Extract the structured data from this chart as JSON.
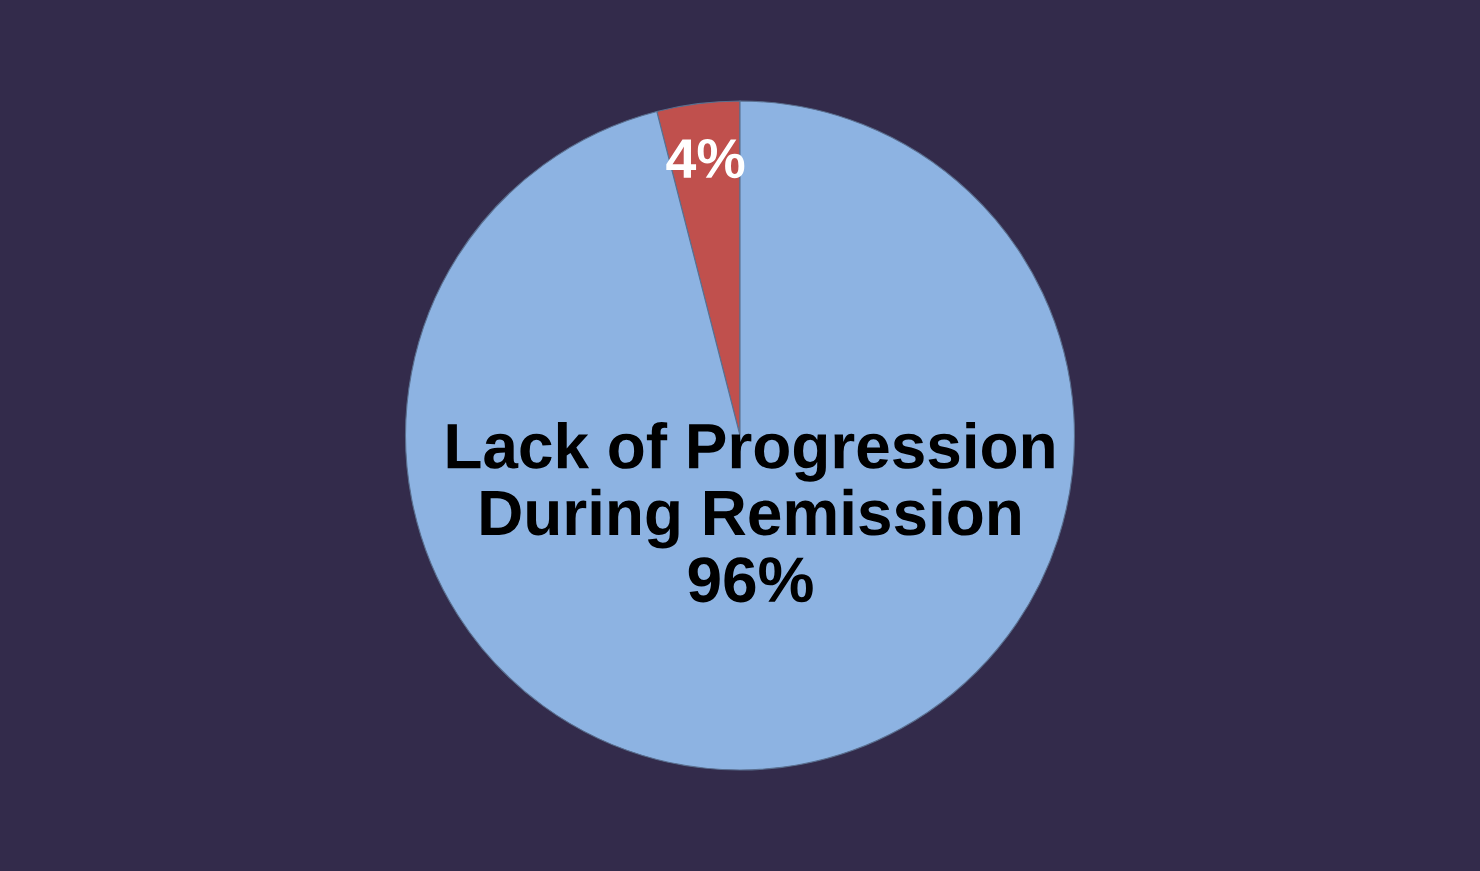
{
  "chart_data": {
    "type": "pie",
    "categories": [
      null,
      "Lack of Progression\nDuring Remission"
    ],
    "values": [
      4,
      96
    ],
    "colors": [
      "#c0504d",
      "#8db3e2"
    ],
    "value_labels": [
      "4%",
      "96%"
    ]
  }
}
